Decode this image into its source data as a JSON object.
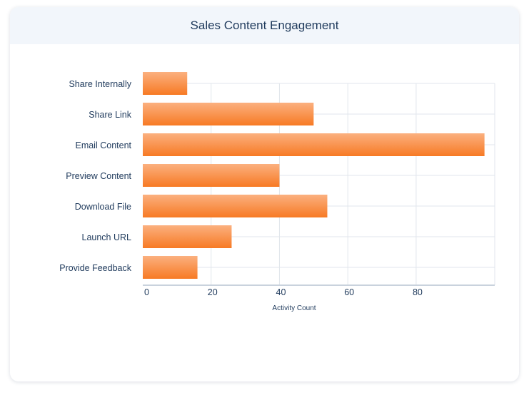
{
  "chart_data": {
    "type": "bar",
    "orientation": "horizontal",
    "title": "Sales Content Engagement",
    "categories": [
      "Share Internally",
      "Share Link",
      "Email Content",
      "Preview Content",
      "Download File",
      "Launch URL",
      "Provide Feedback"
    ],
    "values": [
      13,
      50,
      100,
      40,
      54,
      26,
      16
    ],
    "xlabel": "Activity Count",
    "ylabel": "",
    "xlim": [
      0,
      103
    ],
    "xticks": [
      0,
      20,
      40,
      60,
      80
    ],
    "grid": true,
    "bar_color_top": "#fbb07f",
    "bar_color_bottom": "#f77a24"
  }
}
